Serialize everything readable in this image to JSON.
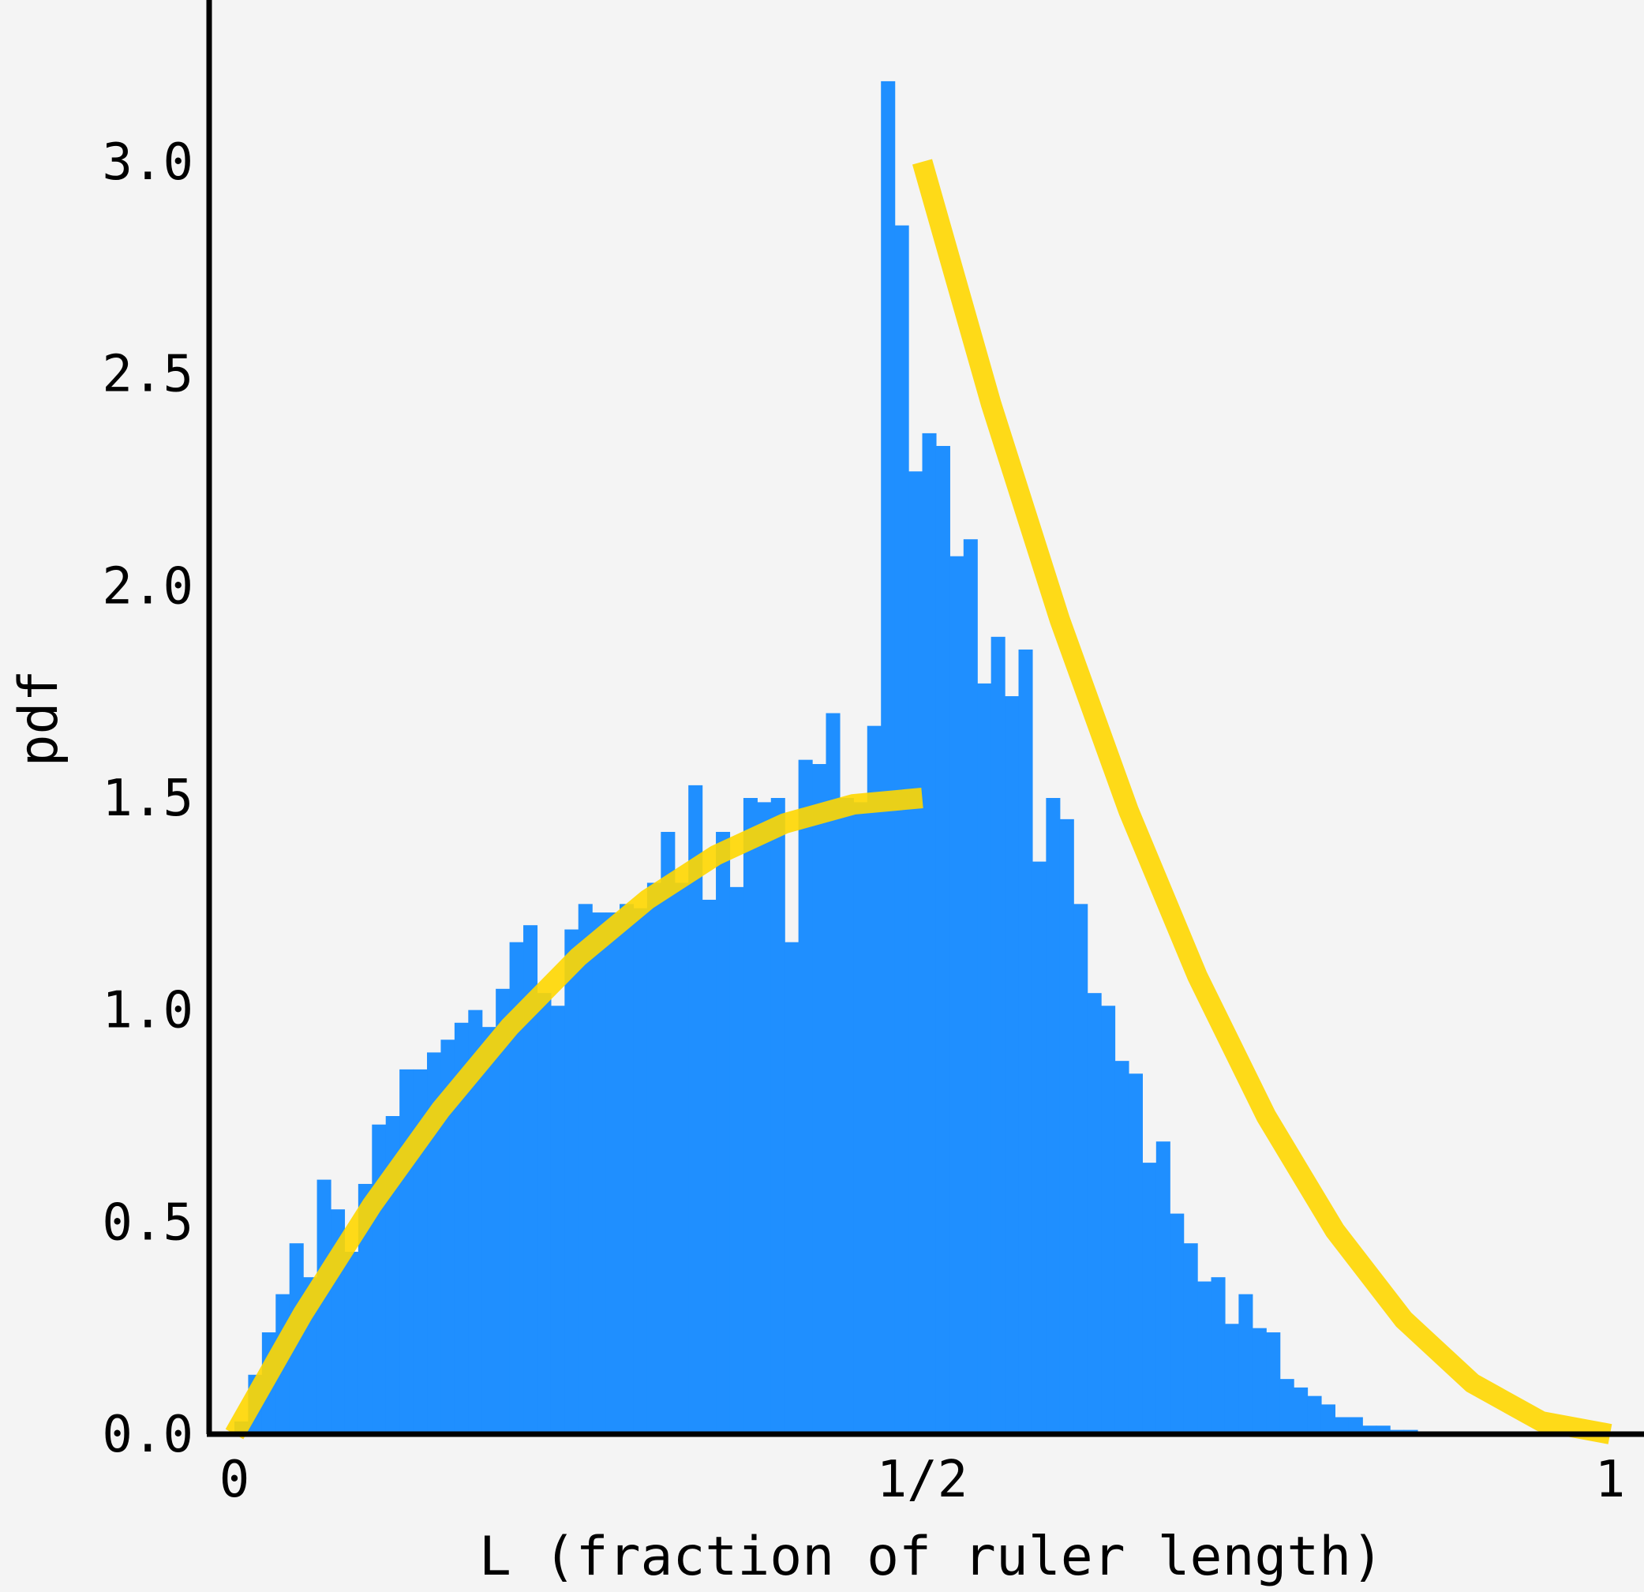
{
  "chart_data": {
    "type": "bar",
    "title": "",
    "xlabel": "L (fraction of ruler length)",
    "ylabel": "pdf",
    "xlim": [
      0,
      1
    ],
    "ylim": [
      0,
      3.3
    ],
    "x_ticks": [
      {
        "value": 0,
        "label": "0"
      },
      {
        "value": 0.5,
        "label": "1/2"
      },
      {
        "value": 1,
        "label": "1"
      }
    ],
    "y_ticks": [
      {
        "value": 0.0,
        "label": "0.0"
      },
      {
        "value": 0.5,
        "label": "0.5"
      },
      {
        "value": 1.0,
        "label": "1.0"
      },
      {
        "value": 1.5,
        "label": "1.5"
      },
      {
        "value": 2.0,
        "label": "2.0"
      },
      {
        "value": 2.5,
        "label": "2.5"
      },
      {
        "value": 3.0,
        "label": "3.0"
      }
    ],
    "grid": false,
    "histogram": {
      "color": "#1f8fff",
      "bin_width": 0.01,
      "bin_starts": [
        0.0,
        0.01,
        0.02,
        0.03,
        0.04,
        0.05,
        0.06,
        0.07,
        0.08,
        0.09,
        0.1,
        0.11,
        0.12,
        0.13,
        0.14,
        0.15,
        0.16,
        0.17,
        0.18,
        0.19,
        0.2,
        0.21,
        0.22,
        0.23,
        0.24,
        0.25,
        0.26,
        0.27,
        0.28,
        0.29,
        0.3,
        0.31,
        0.32,
        0.33,
        0.34,
        0.35,
        0.36,
        0.37,
        0.38,
        0.39,
        0.4,
        0.41,
        0.42,
        0.43,
        0.44,
        0.45,
        0.46,
        0.47,
        0.48,
        0.49,
        0.5,
        0.51,
        0.52,
        0.53,
        0.54,
        0.55,
        0.56,
        0.57,
        0.58,
        0.59,
        0.6,
        0.61,
        0.62,
        0.63,
        0.64,
        0.65,
        0.66,
        0.67,
        0.68,
        0.69,
        0.7,
        0.71,
        0.72,
        0.73,
        0.74,
        0.75,
        0.76,
        0.77,
        0.78,
        0.79,
        0.8,
        0.81,
        0.82,
        0.83,
        0.84,
        0.85,
        0.86,
        0.87,
        0.88,
        0.89,
        0.9,
        0.91,
        0.92,
        0.93,
        0.94,
        0.95,
        0.96,
        0.97,
        0.98,
        0.99
      ],
      "values": [
        0.03,
        0.14,
        0.24,
        0.33,
        0.45,
        0.37,
        0.6,
        0.53,
        0.43,
        0.59,
        0.73,
        0.75,
        0.86,
        0.86,
        0.9,
        0.93,
        0.97,
        1.0,
        0.96,
        1.05,
        1.16,
        1.2,
        1.04,
        1.01,
        1.19,
        1.25,
        1.23,
        1.23,
        1.25,
        1.24,
        1.3,
        1.42,
        1.3,
        1.53,
        1.26,
        1.42,
        1.29,
        1.5,
        1.49,
        1.5,
        1.16,
        1.59,
        1.58,
        1.7,
        1.5,
        1.49,
        1.67,
        3.19,
        2.85,
        2.27,
        2.36,
        2.33,
        2.07,
        2.11,
        1.77,
        1.88,
        1.74,
        1.85,
        1.35,
        1.5,
        1.45,
        1.25,
        1.04,
        1.01,
        0.88,
        0.85,
        0.64,
        0.69,
        0.52,
        0.45,
        0.36,
        0.37,
        0.26,
        0.33,
        0.25,
        0.24,
        0.13,
        0.11,
        0.09,
        0.07,
        0.04,
        0.04,
        0.02,
        0.02,
        0.01,
        0.01,
        0.0,
        0.0,
        0.0,
        0.0,
        0.0,
        0.0,
        0.0,
        0.0,
        0.0,
        0.0,
        0.0,
        0.0,
        0.0,
        0.0
      ]
    },
    "series": [
      {
        "color": "#ffd700",
        "x": [
          0.0,
          0.05,
          0.1,
          0.15,
          0.2,
          0.25,
          0.3,
          0.35,
          0.4,
          0.45,
          0.5
        ],
        "values": [
          0.0,
          0.285,
          0.54,
          0.765,
          0.96,
          1.125,
          1.26,
          1.365,
          1.44,
          1.485,
          1.5
        ]
      },
      {
        "color": "#ffd700",
        "x": [
          0.5,
          0.55,
          0.6,
          0.65,
          0.7,
          0.75,
          0.8,
          0.85,
          0.9,
          0.95,
          1.0
        ],
        "values": [
          3.0,
          2.43,
          1.92,
          1.47,
          1.08,
          0.75,
          0.48,
          0.27,
          0.12,
          0.03,
          0.0
        ]
      }
    ]
  }
}
